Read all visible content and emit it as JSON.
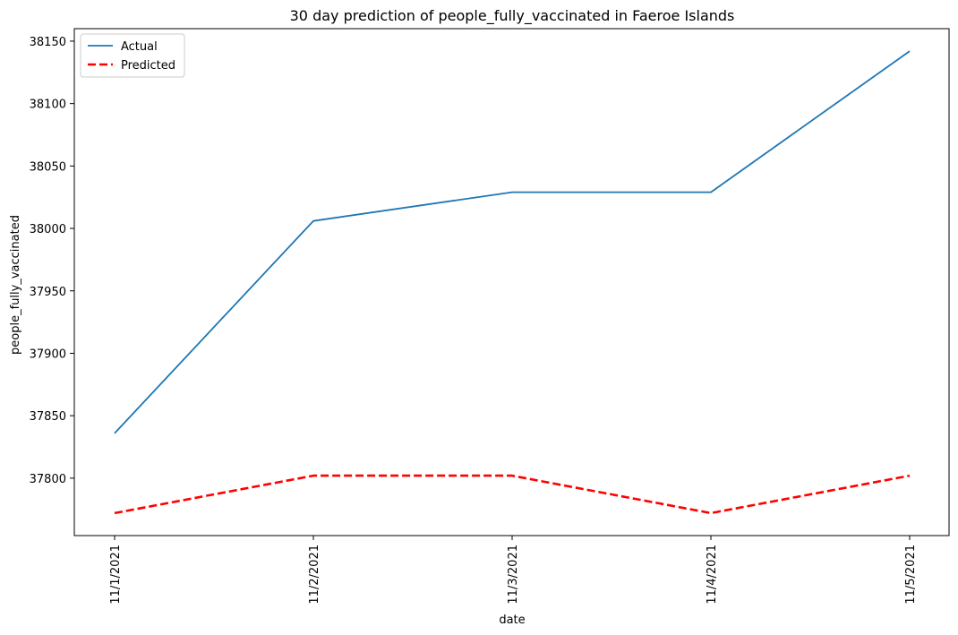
{
  "chart_data": {
    "type": "line",
    "title": "30 day prediction of people_fully_vaccinated in Faeroe Islands",
    "xlabel": "date",
    "ylabel": "people_fully_vaccinated",
    "categories": [
      "11/1/2021",
      "11/2/2021",
      "11/3/2021",
      "11/4/2021",
      "11/5/2021"
    ],
    "series": [
      {
        "name": "Actual",
        "values": [
          37836,
          38006,
          38029,
          38029,
          38142
        ],
        "color": "#1f77b4",
        "style": "solid"
      },
      {
        "name": "Predicted",
        "values": [
          37772,
          37802,
          37802,
          37772,
          37802
        ],
        "color": "#ff0000",
        "style": "dashed"
      }
    ],
    "yticks": [
      37800,
      37850,
      37900,
      37950,
      38000,
      38050,
      38100,
      38150
    ],
    "ylim": [
      37754,
      38160
    ],
    "legend_position": "top-left",
    "grid": false
  }
}
